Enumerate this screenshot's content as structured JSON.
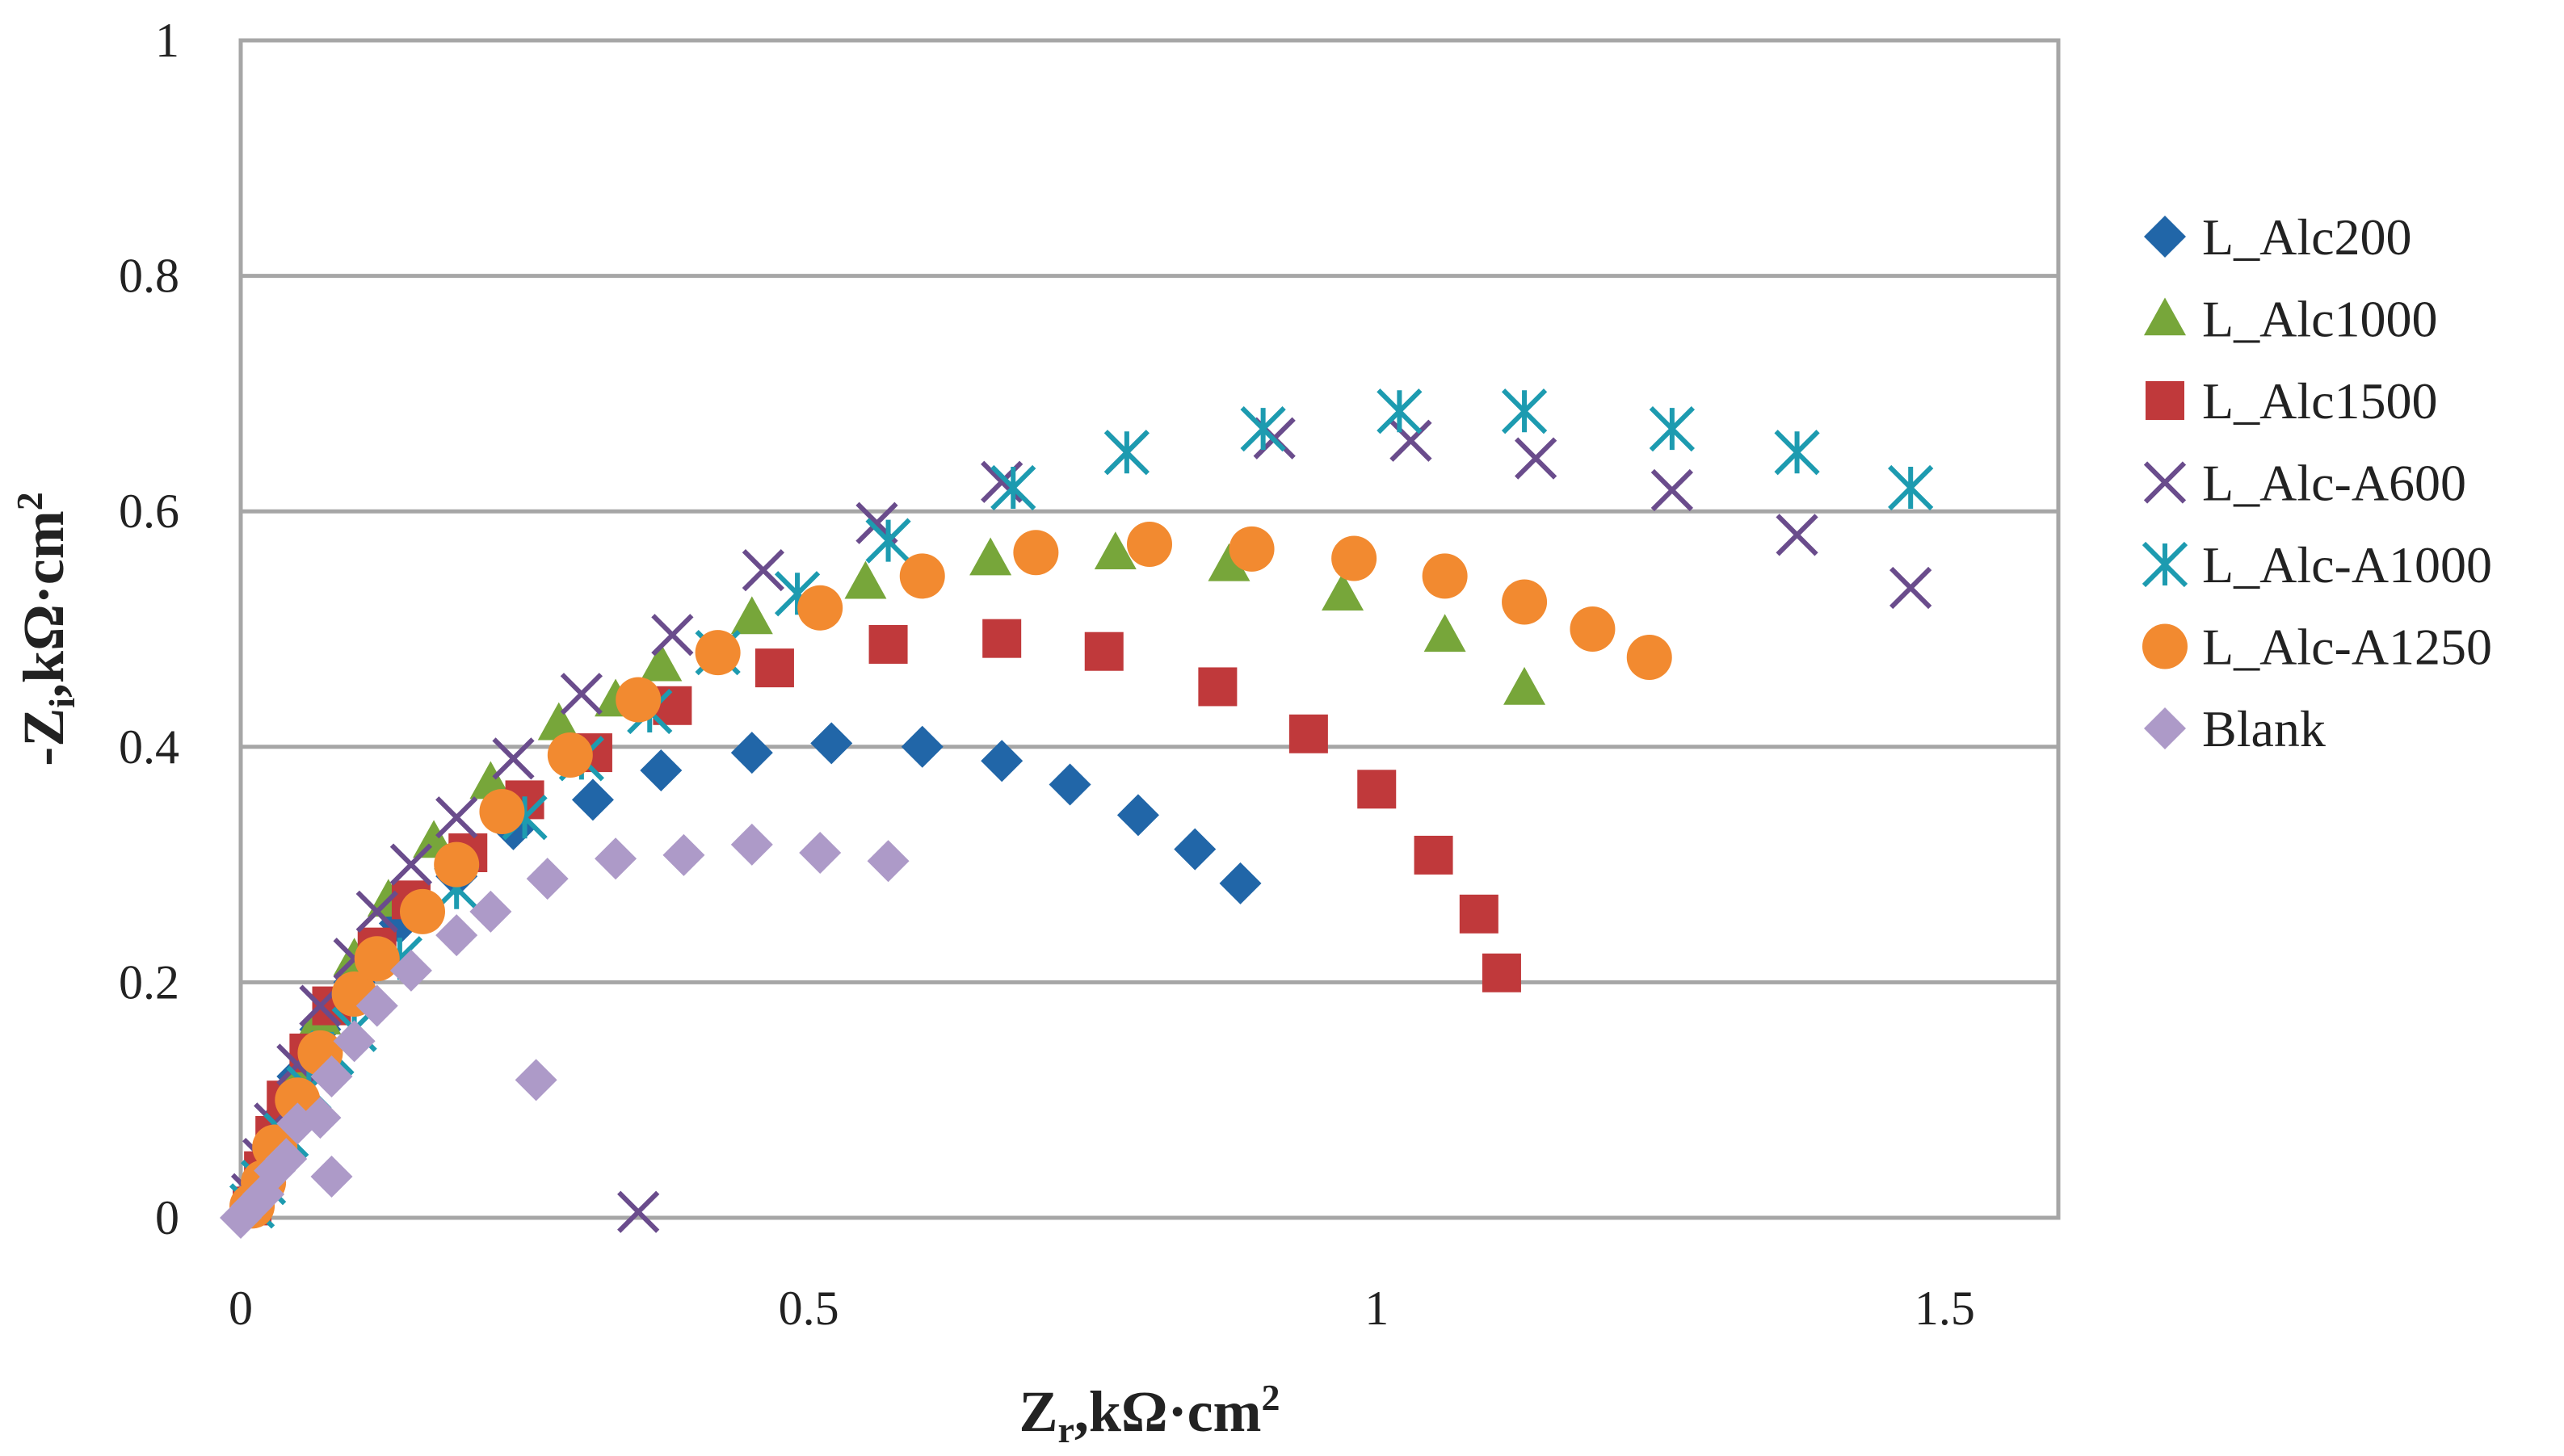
{
  "chart_data": {
    "type": "scatter",
    "title": "",
    "xlabel": "Zr,kΩ·cm²",
    "ylabel": "-Zi,kΩ·cm²",
    "xlabel_parts": {
      "main": "Z",
      "sub": "r",
      "rest": ",kΩ·cm",
      "sup": "2"
    },
    "ylabel_parts": {
      "main": "-Z",
      "sub": "i",
      "rest": ",kΩ·cm",
      "sup": "2"
    },
    "xlim": [
      0,
      1.6
    ],
    "ylim": [
      0,
      1
    ],
    "xticks": [
      0,
      0.5,
      1,
      1.5
    ],
    "xtick_labels": [
      "0",
      "0.5",
      "1",
      "1.5"
    ],
    "yticks": [
      0,
      0.2,
      0.4,
      0.6,
      0.8,
      1
    ],
    "ytick_labels": [
      "0",
      "0.2",
      "0.4",
      "0.6",
      "0.8",
      "1"
    ],
    "grid": "horizontal",
    "legend_position": "right",
    "series": [
      {
        "name": "L_Alc200",
        "marker": "diamond",
        "color": "#2166a8",
        "points": [
          [
            0.01,
            0.01
          ],
          [
            0.02,
            0.03
          ],
          [
            0.03,
            0.06
          ],
          [
            0.04,
            0.09
          ],
          [
            0.05,
            0.12
          ],
          [
            0.07,
            0.16
          ],
          [
            0.1,
            0.2
          ],
          [
            0.14,
            0.25
          ],
          [
            0.19,
            0.29
          ],
          [
            0.24,
            0.33
          ],
          [
            0.31,
            0.355
          ],
          [
            0.37,
            0.38
          ],
          [
            0.45,
            0.395
          ],
          [
            0.52,
            0.403
          ],
          [
            0.6,
            0.4
          ],
          [
            0.67,
            0.388
          ],
          [
            0.73,
            0.368
          ],
          [
            0.79,
            0.342
          ],
          [
            0.84,
            0.313
          ],
          [
            0.88,
            0.284
          ]
        ]
      },
      {
        "name": "L_Alc1000",
        "marker": "triangle",
        "color": "#77a63a",
        "points": [
          [
            0.01,
            0.02
          ],
          [
            0.02,
            0.05
          ],
          [
            0.03,
            0.08
          ],
          [
            0.05,
            0.12
          ],
          [
            0.07,
            0.17
          ],
          [
            0.1,
            0.22
          ],
          [
            0.13,
            0.27
          ],
          [
            0.17,
            0.32
          ],
          [
            0.22,
            0.37
          ],
          [
            0.28,
            0.42
          ],
          [
            0.33,
            0.44
          ],
          [
            0.37,
            0.47
          ],
          [
            0.45,
            0.51
          ],
          [
            0.55,
            0.54
          ],
          [
            0.66,
            0.56
          ],
          [
            0.77,
            0.565
          ],
          [
            0.87,
            0.555
          ],
          [
            0.97,
            0.53
          ],
          [
            1.06,
            0.495
          ],
          [
            1.13,
            0.45
          ]
        ]
      },
      {
        "name": "L_Alc1500",
        "marker": "square",
        "color": "#c0393b",
        "points": [
          [
            0.01,
            0.01
          ],
          [
            0.02,
            0.04
          ],
          [
            0.03,
            0.07
          ],
          [
            0.04,
            0.1
          ],
          [
            0.06,
            0.14
          ],
          [
            0.08,
            0.18
          ],
          [
            0.12,
            0.23
          ],
          [
            0.15,
            0.27
          ],
          [
            0.2,
            0.31
          ],
          [
            0.25,
            0.355
          ],
          [
            0.31,
            0.395
          ],
          [
            0.38,
            0.435
          ],
          [
            0.47,
            0.467
          ],
          [
            0.57,
            0.487
          ],
          [
            0.67,
            0.492
          ],
          [
            0.76,
            0.481
          ],
          [
            0.86,
            0.451
          ],
          [
            0.94,
            0.411
          ],
          [
            1.0,
            0.364
          ],
          [
            1.05,
            0.308
          ],
          [
            1.09,
            0.258
          ],
          [
            1.11,
            0.208
          ]
        ]
      },
      {
        "name": "L_Alc-A600",
        "marker": "x",
        "color": "#6a4c8c",
        "points": [
          [
            0.01,
            0.02
          ],
          [
            0.02,
            0.05
          ],
          [
            0.03,
            0.08
          ],
          [
            0.05,
            0.13
          ],
          [
            0.07,
            0.18
          ],
          [
            0.1,
            0.22
          ],
          [
            0.12,
            0.26
          ],
          [
            0.15,
            0.3
          ],
          [
            0.19,
            0.34
          ],
          [
            0.24,
            0.39
          ],
          [
            0.3,
            0.445
          ],
          [
            0.38,
            0.495
          ],
          [
            0.46,
            0.55
          ],
          [
            0.56,
            0.59
          ],
          [
            0.67,
            0.625
          ],
          [
            0.78,
            0.65
          ],
          [
            0.91,
            0.662
          ],
          [
            1.03,
            0.66
          ],
          [
            1.14,
            0.645
          ],
          [
            1.26,
            0.618
          ],
          [
            1.37,
            0.58
          ],
          [
            1.47,
            0.535
          ],
          [
            0.35,
            0.005
          ]
        ]
      },
      {
        "name": "L_Alc-A1000",
        "marker": "asterisk",
        "color": "#1d9bb0",
        "points": [
          [
            0.01,
            0.01
          ],
          [
            0.02,
            0.03
          ],
          [
            0.04,
            0.07
          ],
          [
            0.06,
            0.11
          ],
          [
            0.08,
            0.14
          ],
          [
            0.1,
            0.16
          ],
          [
            0.14,
            0.22
          ],
          [
            0.19,
            0.28
          ],
          [
            0.25,
            0.34
          ],
          [
            0.3,
            0.39
          ],
          [
            0.36,
            0.43
          ],
          [
            0.42,
            0.48
          ],
          [
            0.49,
            0.53
          ],
          [
            0.57,
            0.575
          ],
          [
            0.68,
            0.62
          ],
          [
            0.78,
            0.65
          ],
          [
            0.9,
            0.67
          ],
          [
            1.02,
            0.685
          ],
          [
            1.13,
            0.685
          ],
          [
            1.26,
            0.67
          ],
          [
            1.37,
            0.65
          ],
          [
            1.47,
            0.62
          ]
        ]
      },
      {
        "name": "L_Alc-A1250",
        "marker": "circle",
        "color": "#f28a30",
        "points": [
          [
            0.01,
            0.01
          ],
          [
            0.02,
            0.03
          ],
          [
            0.03,
            0.06
          ],
          [
            0.05,
            0.1
          ],
          [
            0.07,
            0.14
          ],
          [
            0.1,
            0.19
          ],
          [
            0.12,
            0.22
          ],
          [
            0.16,
            0.26
          ],
          [
            0.19,
            0.3
          ],
          [
            0.23,
            0.345
          ],
          [
            0.29,
            0.393
          ],
          [
            0.35,
            0.44
          ],
          [
            0.42,
            0.48
          ],
          [
            0.51,
            0.518
          ],
          [
            0.6,
            0.545
          ],
          [
            0.7,
            0.565
          ],
          [
            0.8,
            0.572
          ],
          [
            0.89,
            0.568
          ],
          [
            0.98,
            0.56
          ],
          [
            1.06,
            0.545
          ],
          [
            1.13,
            0.523
          ],
          [
            1.19,
            0.5
          ],
          [
            1.24,
            0.476
          ]
        ]
      },
      {
        "name": "Blank",
        "marker": "diamond",
        "color": "#ad9ac8",
        "points": [
          [
            0.0,
            0.0
          ],
          [
            0.01,
            0.01
          ],
          [
            0.02,
            0.02
          ],
          [
            0.04,
            0.05
          ],
          [
            0.05,
            0.08
          ],
          [
            0.08,
            0.12
          ],
          [
            0.1,
            0.15
          ],
          [
            0.12,
            0.18
          ],
          [
            0.15,
            0.21
          ],
          [
            0.19,
            0.24
          ],
          [
            0.22,
            0.26
          ],
          [
            0.27,
            0.288
          ],
          [
            0.33,
            0.305
          ],
          [
            0.39,
            0.308
          ],
          [
            0.45,
            0.317
          ],
          [
            0.51,
            0.31
          ],
          [
            0.57,
            0.303
          ],
          [
            0.26,
            0.117
          ],
          [
            0.08,
            0.035
          ],
          [
            0.07,
            0.085
          ],
          [
            0.03,
            0.04
          ]
        ]
      }
    ]
  }
}
